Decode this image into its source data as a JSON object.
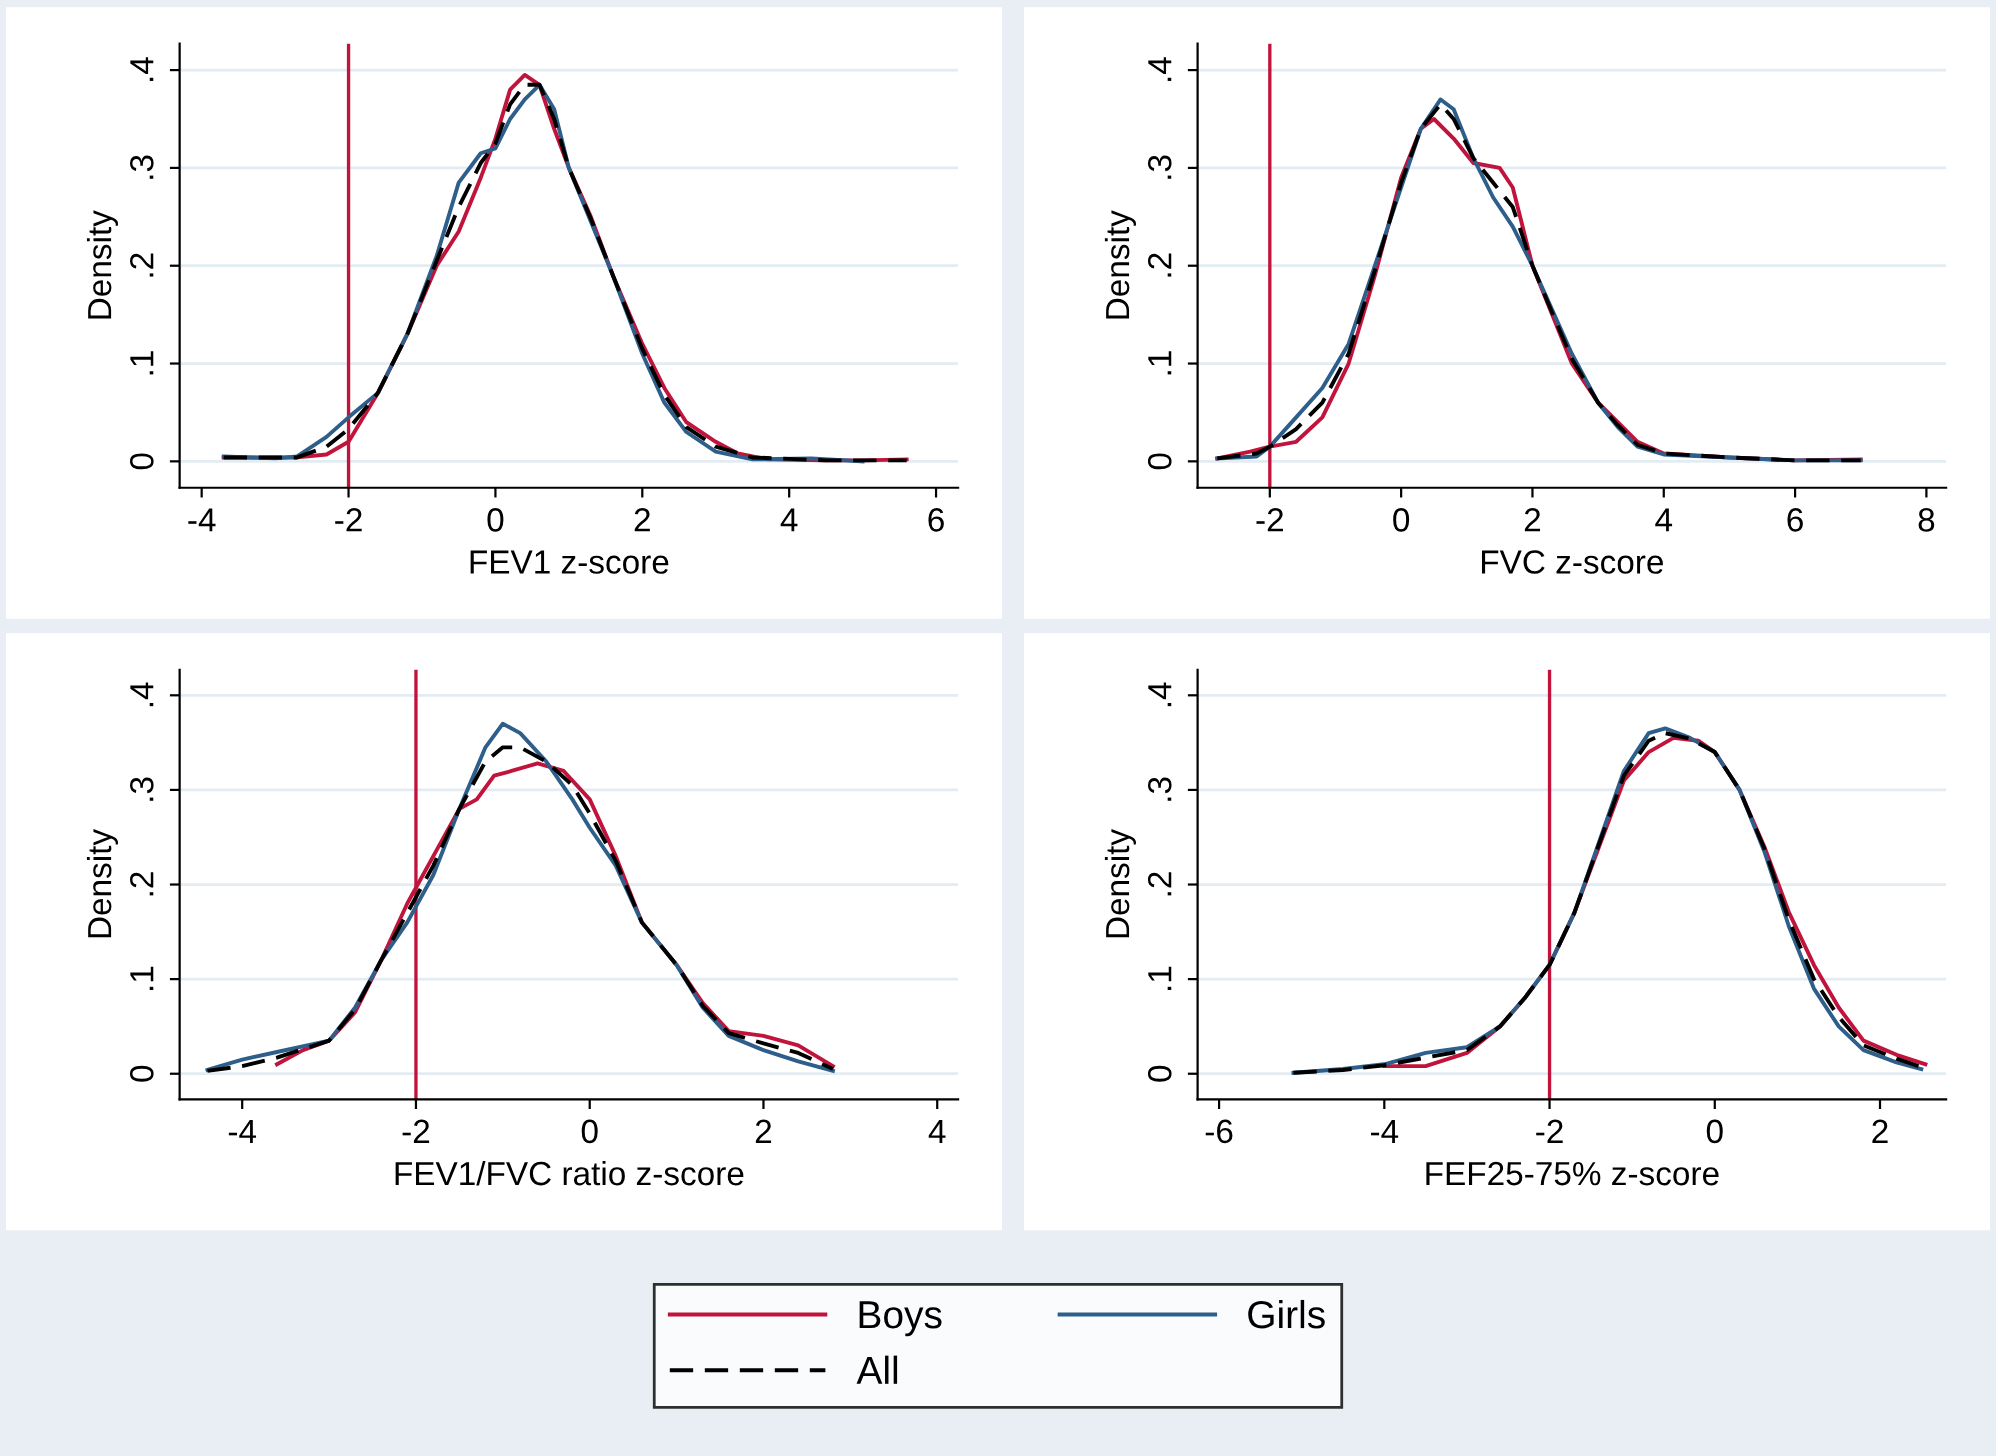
{
  "chart_data": [
    {
      "type": "line",
      "xlabel": "FEV1 z-score",
      "ylabel": "Density",
      "xlim": [
        -4.3,
        6.3
      ],
      "ylim": [
        -0.027,
        0.427
      ],
      "xticks": [
        -4,
        -2,
        0,
        2,
        4,
        6
      ],
      "yticks": [
        0,
        {
          "value": 0.1,
          "label": ".1"
        },
        {
          "value": 0.2,
          "label": ".2"
        },
        {
          "value": 0.3,
          "label": ".3"
        },
        {
          "value": 0.4,
          "label": ".4"
        }
      ],
      "grid": "y",
      "legend": "bottom",
      "ref_lines": [
        {
          "axis": "x",
          "value": -2,
          "color": "#c0143c"
        }
      ],
      "series": [
        {
          "name": "Boys",
          "color": "#c0143c",
          "x": [
            -3.7,
            -2.7,
            -2.3,
            -2,
            -1.6,
            -1.2,
            -0.8,
            -0.5,
            -0.2,
            0,
            0.2,
            0.4,
            0.6,
            0.8,
            1.0,
            1.3,
            1.6,
            2.0,
            2.3,
            2.6,
            3.0,
            3.3,
            3.7,
            4.5,
            5.0,
            5.6
          ],
          "values": [
            0.004,
            0.004,
            0.007,
            0.02,
            0.07,
            0.13,
            0.2,
            0.235,
            0.29,
            0.33,
            0.38,
            0.395,
            0.385,
            0.34,
            0.3,
            0.25,
            0.19,
            0.12,
            0.075,
            0.04,
            0.02,
            0.008,
            0.002,
            0.001,
            0.001,
            0.002
          ]
        },
        {
          "name": "Girls",
          "color": "#2e5e8a",
          "x": [
            -3.7,
            -3.0,
            -2.7,
            -2.3,
            -2,
            -1.6,
            -1.2,
            -0.8,
            -0.5,
            -0.2,
            0,
            0.2,
            0.4,
            0.6,
            0.8,
            1.0,
            1.3,
            1.6,
            2.0,
            2.3,
            2.6,
            3.0,
            3.5,
            4.3,
            5.0
          ],
          "values": [
            0.005,
            0.003,
            0.005,
            0.025,
            0.045,
            0.07,
            0.13,
            0.21,
            0.285,
            0.315,
            0.32,
            0.35,
            0.37,
            0.385,
            0.36,
            0.3,
            0.245,
            0.19,
            0.11,
            0.06,
            0.03,
            0.01,
            0.002,
            0.003,
            0.0
          ]
        },
        {
          "name": "All",
          "color": "#000000",
          "line_style": "dashed",
          "x": [
            -3.7,
            -2.7,
            -2.3,
            -2,
            -1.6,
            -1.2,
            -0.8,
            -0.5,
            -0.2,
            0,
            0.2,
            0.4,
            0.6,
            0.8,
            1.0,
            1.3,
            1.6,
            2.0,
            2.3,
            2.6,
            3.0,
            3.5,
            4.5,
            5.6
          ],
          "values": [
            0.004,
            0.004,
            0.015,
            0.033,
            0.07,
            0.13,
            0.205,
            0.26,
            0.305,
            0.325,
            0.365,
            0.385,
            0.385,
            0.35,
            0.3,
            0.248,
            0.19,
            0.115,
            0.068,
            0.035,
            0.015,
            0.004,
            0.001,
            0.001
          ]
        }
      ]
    },
    {
      "type": "line",
      "xlabel": "FVC z-score",
      "ylabel": "Density",
      "xlim": [
        -3.1,
        8.3
      ],
      "ylim": [
        -0.027,
        0.427
      ],
      "xticks": [
        -2,
        0,
        2,
        4,
        6,
        8
      ],
      "yticks": [
        0,
        {
          "value": 0.1,
          "label": ".1"
        },
        {
          "value": 0.2,
          "label": ".2"
        },
        {
          "value": 0.3,
          "label": ".3"
        },
        {
          "value": 0.4,
          "label": ".4"
        }
      ],
      "grid": "y",
      "ref_lines": [
        {
          "axis": "x",
          "value": -2,
          "color": "#c0143c"
        }
      ],
      "series": [
        {
          "color": "#c0143c",
          "x": [
            -2.8,
            -2.3,
            -2,
            -1.6,
            -1.2,
            -0.8,
            -0.4,
            0,
            0.3,
            0.5,
            0.8,
            1.1,
            1.5,
            1.7,
            2.0,
            2.3,
            2.6,
            3.0,
            3.3,
            3.6,
            4.0,
            5,
            6,
            7.0
          ],
          "values": [
            0.003,
            0.01,
            0.015,
            0.02,
            0.045,
            0.1,
            0.19,
            0.29,
            0.34,
            0.35,
            0.33,
            0.305,
            0.3,
            0.28,
            0.2,
            0.15,
            0.1,
            0.06,
            0.04,
            0.02,
            0.008,
            0.004,
            0.001,
            0.002
          ]
        },
        {
          "color": "#2e5e8a",
          "x": [
            -2.8,
            -2.2,
            -2,
            -1.6,
            -1.2,
            -0.8,
            -0.4,
            0,
            0.3,
            0.6,
            0.8,
            1.1,
            1.4,
            1.7,
            2.0,
            2.3,
            2.6,
            3.0,
            3.3,
            3.6,
            4.0,
            5,
            6,
            7.0
          ],
          "values": [
            0.003,
            0.005,
            0.015,
            0.045,
            0.075,
            0.12,
            0.2,
            0.28,
            0.34,
            0.37,
            0.36,
            0.31,
            0.27,
            0.24,
            0.2,
            0.155,
            0.11,
            0.06,
            0.035,
            0.015,
            0.007,
            0.004,
            0.001,
            0.001
          ]
        },
        {
          "color": "#000000",
          "line_style": "dashed",
          "x": [
            -2.8,
            -2.2,
            -2,
            -1.6,
            -1.2,
            -0.8,
            -0.4,
            0,
            0.3,
            0.6,
            0.8,
            1.1,
            1.4,
            1.7,
            2.0,
            2.3,
            2.6,
            3.0,
            3.3,
            3.6,
            4.0,
            5,
            6,
            7.0
          ],
          "values": [
            0.003,
            0.008,
            0.015,
            0.033,
            0.06,
            0.11,
            0.195,
            0.285,
            0.34,
            0.365,
            0.35,
            0.31,
            0.285,
            0.26,
            0.2,
            0.152,
            0.105,
            0.06,
            0.037,
            0.017,
            0.008,
            0.004,
            0.001,
            0.001
          ]
        }
      ]
    },
    {
      "type": "line",
      "xlabel": "FEV1/FVC ratio z-score",
      "ylabel": "Density",
      "xlim": [
        -4.72,
        4.24
      ],
      "ylim": [
        -0.027,
        0.427
      ],
      "xticks": [
        -4,
        -2,
        0,
        2,
        4
      ],
      "yticks": [
        0,
        {
          "value": 0.1,
          "label": ".1"
        },
        {
          "value": 0.2,
          "label": ".2"
        },
        {
          "value": 0.3,
          "label": ".3"
        },
        {
          "value": 0.4,
          "label": ".4"
        }
      ],
      "grid": "y",
      "ref_lines": [
        {
          "axis": "x",
          "value": -2,
          "color": "#c0143c"
        }
      ],
      "series": [
        {
          "color": "#c0143c",
          "x": [
            -3.6,
            -3.3,
            -3,
            -2.7,
            -2.4,
            -2.1,
            -1.8,
            -1.5,
            -1.3,
            -1.1,
            -0.9,
            -0.6,
            -0.3,
            0,
            0.3,
            0.6,
            1.0,
            1.3,
            1.6,
            2.0,
            2.4,
            2.8
          ],
          "values": [
            0.01,
            0.025,
            0.035,
            0.065,
            0.12,
            0.18,
            0.23,
            0.28,
            0.29,
            0.315,
            0.32,
            0.328,
            0.32,
            0.29,
            0.23,
            0.16,
            0.115,
            0.075,
            0.045,
            0.04,
            0.03,
            0.008
          ]
        },
        {
          "color": "#2e5e8a",
          "x": [
            -4.4,
            -4,
            -3.6,
            -3,
            -2.7,
            -2.4,
            -2.1,
            -1.8,
            -1.5,
            -1.2,
            -1.0,
            -0.8,
            -0.5,
            -0.2,
            0,
            0.3,
            0.6,
            1.0,
            1.3,
            1.6,
            2.0,
            2.4,
            2.8
          ],
          "values": [
            0.004,
            0.015,
            0.023,
            0.035,
            0.07,
            0.12,
            0.16,
            0.21,
            0.28,
            0.345,
            0.37,
            0.36,
            0.33,
            0.29,
            0.26,
            0.22,
            0.16,
            0.115,
            0.07,
            0.04,
            0.025,
            0.013,
            0.003
          ]
        },
        {
          "color": "#000000",
          "line_style": "dashed",
          "x": [
            -4.4,
            -4,
            -3.6,
            -3,
            -2.7,
            -2.4,
            -2.1,
            -1.8,
            -1.5,
            -1.2,
            -1.0,
            -0.8,
            -0.5,
            -0.2,
            0,
            0.3,
            0.6,
            1.0,
            1.3,
            1.6,
            2.0,
            2.4,
            2.8
          ],
          "values": [
            0.003,
            0.008,
            0.017,
            0.035,
            0.068,
            0.12,
            0.17,
            0.22,
            0.28,
            0.33,
            0.345,
            0.345,
            0.33,
            0.305,
            0.275,
            0.225,
            0.16,
            0.115,
            0.072,
            0.043,
            0.032,
            0.022,
            0.005
          ]
        }
      ]
    },
    {
      "type": "line",
      "xlabel": "FEF25-75% z-score",
      "ylabel": "Density",
      "xlim": [
        -6.26,
        2.8
      ],
      "ylim": [
        -0.027,
        0.427
      ],
      "xticks": [
        -6,
        -4,
        -2,
        0,
        2
      ],
      "yticks": [
        0,
        {
          "value": 0.1,
          "label": ".1"
        },
        {
          "value": 0.2,
          "label": ".2"
        },
        {
          "value": 0.3,
          "label": ".3"
        },
        {
          "value": 0.4,
          "label": ".4"
        }
      ],
      "grid": "y",
      "ref_lines": [
        {
          "axis": "x",
          "value": -2,
          "color": "#c0143c"
        }
      ],
      "series": [
        {
          "color": "#c0143c",
          "x": [
            -4,
            -3.5,
            -3,
            -2.6,
            -2.3,
            -2,
            -1.7,
            -1.4,
            -1.1,
            -0.8,
            -0.5,
            -0.2,
            0,
            0.3,
            0.6,
            0.9,
            1.2,
            1.5,
            1.8,
            2.2,
            2.55
          ],
          "values": [
            0.008,
            0.008,
            0.022,
            0.05,
            0.08,
            0.115,
            0.17,
            0.24,
            0.31,
            0.34,
            0.355,
            0.352,
            0.34,
            0.3,
            0.24,
            0.17,
            0.115,
            0.07,
            0.035,
            0.02,
            0.01
          ]
        },
        {
          "color": "#2e5e8a",
          "x": [
            -5.1,
            -4.5,
            -4,
            -3.5,
            -3,
            -2.6,
            -2.3,
            -2,
            -1.7,
            -1.4,
            -1.1,
            -0.8,
            -0.6,
            -0.3,
            0,
            0.3,
            0.6,
            0.9,
            1.2,
            1.5,
            1.8,
            2.2,
            2.5
          ],
          "values": [
            0.001,
            0.005,
            0.01,
            0.022,
            0.028,
            0.05,
            0.08,
            0.115,
            0.17,
            0.245,
            0.32,
            0.36,
            0.365,
            0.355,
            0.34,
            0.3,
            0.235,
            0.155,
            0.09,
            0.05,
            0.025,
            0.012,
            0.005
          ]
        },
        {
          "color": "#000000",
          "line_style": "dashed",
          "x": [
            -5.1,
            -4.5,
            -4,
            -3.5,
            -3,
            -2.6,
            -2.3,
            -2,
            -1.7,
            -1.4,
            -1.1,
            -0.8,
            -0.6,
            -0.3,
            0,
            0.3,
            0.6,
            0.9,
            1.2,
            1.5,
            1.8,
            2.2,
            2.5
          ],
          "values": [
            0.001,
            0.004,
            0.009,
            0.017,
            0.025,
            0.05,
            0.08,
            0.115,
            0.17,
            0.243,
            0.315,
            0.352,
            0.36,
            0.354,
            0.34,
            0.3,
            0.238,
            0.162,
            0.1,
            0.06,
            0.03,
            0.016,
            0.007
          ]
        }
      ]
    }
  ]
}
